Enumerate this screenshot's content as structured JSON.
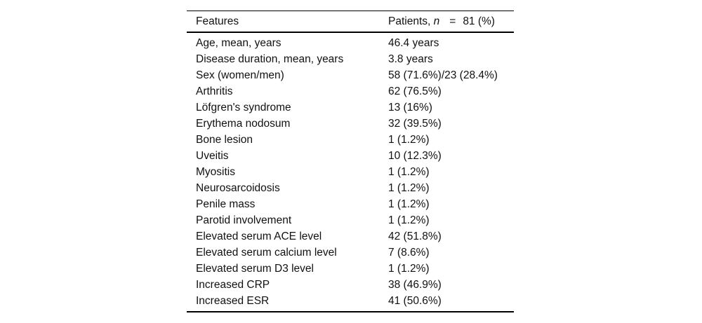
{
  "table": {
    "header": {
      "features_label": "Features",
      "patients_prefix": "Patients, ",
      "patients_n": "n",
      "patients_eq": "=",
      "patients_value": "81 (%)"
    },
    "rows": [
      {
        "feature": "Age, mean, years",
        "value": "46.4 years"
      },
      {
        "feature": "Disease duration, mean, years",
        "value": "3.8 years"
      },
      {
        "feature": "Sex (women/men)",
        "value": "58 (71.6%)/23 (28.4%)"
      },
      {
        "feature": "Arthritis",
        "value": "62 (76.5%)"
      },
      {
        "feature": "Löfgren's syndrome",
        "value": "13 (16%)"
      },
      {
        "feature": "Erythema nodosum",
        "value": "32 (39.5%)"
      },
      {
        "feature": "Bone lesion",
        "value": "1 (1.2%)"
      },
      {
        "feature": "Uveitis",
        "value": "10 (12.3%)"
      },
      {
        "feature": "Myositis",
        "value": "1 (1.2%)"
      },
      {
        "feature": "Neurosarcoidosis",
        "value": "1 (1.2%)"
      },
      {
        "feature": "Penile mass",
        "value": "1 (1.2%)"
      },
      {
        "feature": "Parotid involvement",
        "value": "1 (1.2%)"
      },
      {
        "feature": "Elevated serum ACE level",
        "value": "42 (51.8%)"
      },
      {
        "feature": "Elevated serum calcium level",
        "value": "7 (8.6%)"
      },
      {
        "feature": "Elevated serum D3 level",
        "value": "1 (1.2%)"
      },
      {
        "feature": "Increased CRP",
        "value": "38 (46.9%)"
      },
      {
        "feature": "Increased ESR",
        "value": "41 (50.6%)"
      }
    ],
    "colors": {
      "text": "#111111",
      "rule": "#000000",
      "background": "#ffffff"
    }
  }
}
